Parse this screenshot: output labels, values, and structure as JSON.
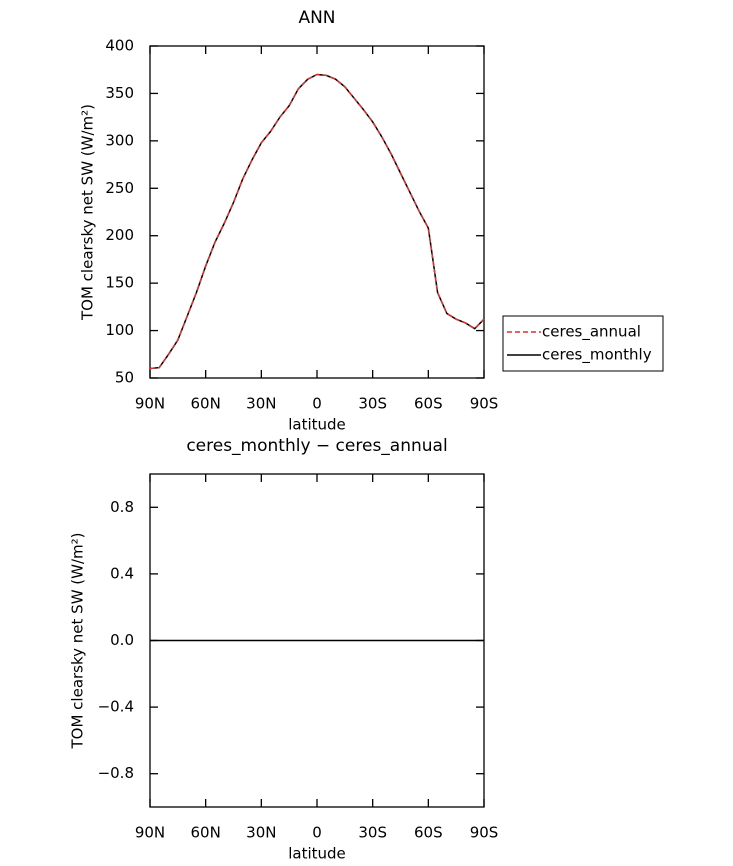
{
  "chart_data": [
    {
      "type": "line",
      "title": "ANN",
      "xlabel": "latitude",
      "ylabel": "TOM clearsky net SW (W/m²)",
      "x": [
        90,
        85,
        80,
        75,
        70,
        65,
        60,
        55,
        50,
        45,
        40,
        35,
        30,
        25,
        20,
        15,
        10,
        5,
        0,
        -5,
        -10,
        -15,
        -20,
        -25,
        -30,
        -35,
        -40,
        -45,
        -50,
        -55,
        -60,
        -65,
        -70,
        -75,
        -80,
        -85,
        -90
      ],
      "series": [
        {
          "name": "ceres_annual",
          "color": "#e03030",
          "dash": true,
          "values": [
            60,
            61,
            75,
            90,
            115,
            140,
            168,
            193,
            213,
            235,
            260,
            280,
            298,
            310,
            325,
            337,
            355,
            365,
            370,
            369,
            365,
            357,
            345,
            333,
            320,
            304,
            286,
            266,
            246,
            226,
            208,
            140,
            118,
            112,
            108,
            102,
            112
          ]
        },
        {
          "name": "ceres_monthly",
          "color": "#000000",
          "dash": false,
          "values": [
            60,
            61,
            75,
            90,
            115,
            140,
            168,
            193,
            213,
            235,
            260,
            280,
            298,
            310,
            325,
            337,
            355,
            365,
            370,
            369,
            365,
            357,
            345,
            333,
            320,
            304,
            286,
            266,
            246,
            226,
            208,
            140,
            118,
            112,
            108,
            102,
            112
          ]
        }
      ],
      "xlim": [
        90,
        -90
      ],
      "xticks": [
        {
          "value": 90,
          "label": "90N"
        },
        {
          "value": 60,
          "label": "60N"
        },
        {
          "value": 30,
          "label": "30N"
        },
        0,
        {
          "value": -30,
          "label": "30S"
        },
        {
          "value": -60,
          "label": "60S"
        },
        {
          "value": -90,
          "label": "90S"
        }
      ],
      "ylim": [
        50,
        400
      ],
      "yticks": [
        50,
        100,
        150,
        200,
        250,
        300,
        350,
        400
      ]
    },
    {
      "type": "line",
      "title": "ceres_monthly − ceres_annual",
      "xlabel": "latitude",
      "ylabel": "TOM clearsky net SW (W/m²)",
      "x": [
        90,
        -90
      ],
      "values": [
        0,
        0
      ],
      "color": "#000000",
      "xlim": [
        90,
        -90
      ],
      "xticks": [
        {
          "value": 90,
          "label": "90N"
        },
        {
          "value": 60,
          "label": "60N"
        },
        {
          "value": 30,
          "label": "30N"
        },
        0,
        {
          "value": -30,
          "label": "30S"
        },
        {
          "value": -60,
          "label": "60S"
        },
        {
          "value": -90,
          "label": "90S"
        }
      ],
      "ylim": [
        -1,
        1
      ],
      "yticks": [
        {
          "value": -0.8,
          "label": "−0.8"
        },
        {
          "value": -0.4,
          "label": "−0.4"
        },
        {
          "value": 0,
          "label": "0.0"
        },
        0.4,
        0.8
      ]
    }
  ]
}
